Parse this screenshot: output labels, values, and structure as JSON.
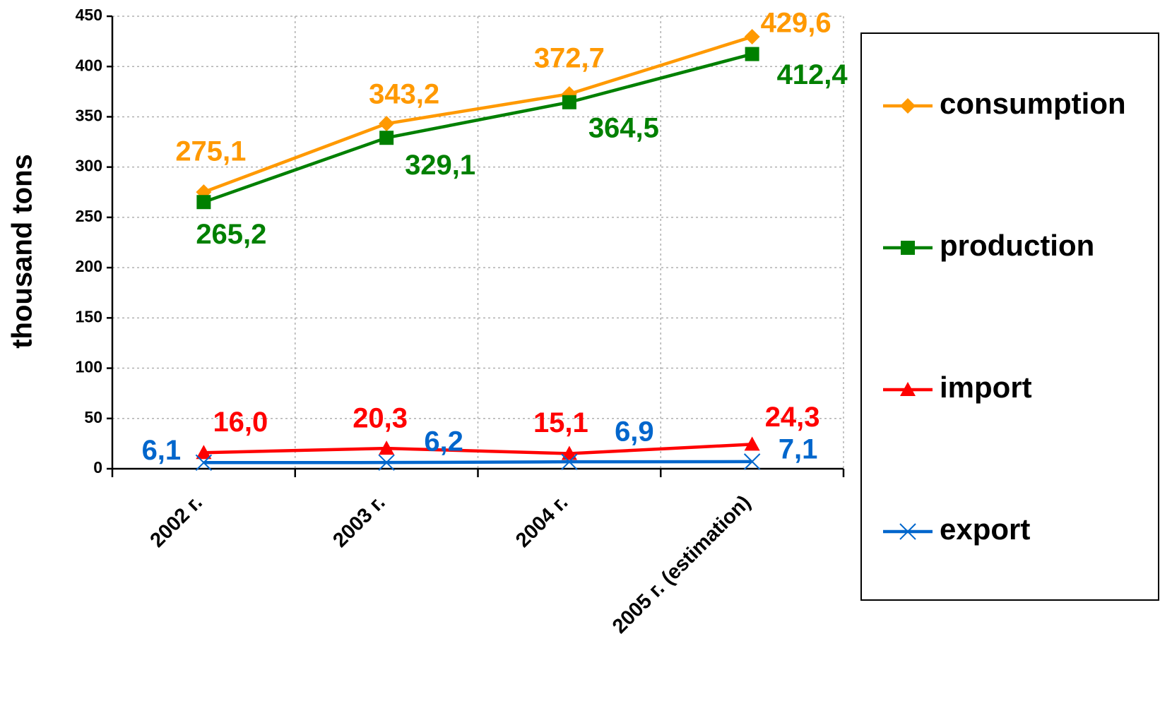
{
  "chart_data": {
    "type": "line",
    "y_label": "thousand tons",
    "categories": [
      "2002 г.",
      "2003 г.",
      "2004 г.",
      "2005 г. (estimation)"
    ],
    "series": [
      {
        "name": "consumption",
        "color": "#ff9900",
        "marker": "diamond",
        "values": [
          275.1,
          343.2,
          372.7,
          429.6
        ],
        "value_labels": [
          "275,1",
          "343,2",
          "372,7",
          "429,6"
        ]
      },
      {
        "name": "production",
        "color": "#008000",
        "marker": "square",
        "values": [
          265.2,
          329.1,
          364.5,
          412.4
        ],
        "value_labels": [
          "265,2",
          "329,1",
          "364,5",
          "412,4"
        ]
      },
      {
        "name": "import",
        "color": "#ff0000",
        "marker": "triangle",
        "values": [
          16.0,
          20.3,
          15.1,
          24.3
        ],
        "value_labels": [
          "16,0",
          "20,3",
          "15,1",
          "24,3"
        ]
      },
      {
        "name": "export",
        "color": "#0066cc",
        "marker": "x",
        "values": [
          6.1,
          6.2,
          6.9,
          7.1
        ],
        "value_labels": [
          "6,1",
          "6,2",
          "6,9",
          "7,1"
        ]
      }
    ],
    "ylim": [
      0,
      450
    ],
    "yticks": [
      0,
      50,
      100,
      150,
      200,
      250,
      300,
      350,
      400,
      450
    ],
    "grid": true,
    "legend": "right"
  }
}
